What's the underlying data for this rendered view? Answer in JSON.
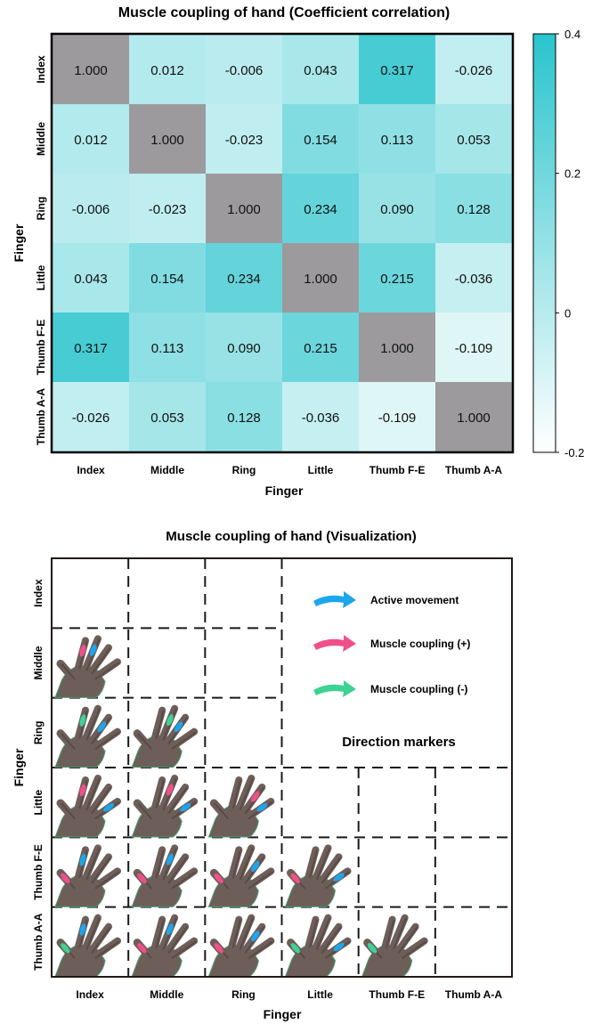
{
  "chart_data": [
    {
      "type": "heatmap",
      "title": "Muscle coupling of hand",
      "subtitle": "(Coefficient correlation)",
      "xlabel": "Finger",
      "ylabel": "Finger",
      "categories": [
        "Index",
        "Middle",
        "Ring",
        "Little",
        "Thumb F-E",
        "Thumb A-A"
      ],
      "values": [
        [
          "1.000",
          "0.012",
          "-0.006",
          "0.043",
          "0.317",
          "-0.026"
        ],
        [
          "0.012",
          "1.000",
          "-0.023",
          "0.154",
          "0.113",
          "0.053"
        ],
        [
          "-0.006",
          "-0.023",
          "1.000",
          "0.234",
          "0.090",
          "0.128"
        ],
        [
          "0.043",
          "0.154",
          "0.234",
          "1.000",
          "0.215",
          "-0.036"
        ],
        [
          "0.317",
          "0.113",
          "0.090",
          "0.215",
          "1.000",
          "-0.109"
        ],
        [
          "-0.026",
          "0.053",
          "0.128",
          "-0.036",
          "-0.109",
          "1.000"
        ]
      ],
      "diagonal_color": "#9c9a9d",
      "colorbar": {
        "min": -0.2,
        "max": 0.4,
        "ticks": [
          "0.4",
          "0.2",
          "0",
          "-0.2"
        ],
        "tick_values": [
          0.4,
          0.2,
          0,
          -0.2
        ],
        "color_low": "#ffffff",
        "color_high": "#29c4cc"
      }
    },
    {
      "type": "table",
      "title": "Muscle coupling of hand (Visualization)",
      "xlabel": "Finger",
      "ylabel": "Finger",
      "categories": [
        "Index",
        "Middle",
        "Ring",
        "Little",
        "Thumb F-E",
        "Thumb A-A"
      ],
      "cells": [
        {
          "row": 1,
          "col": 0,
          "active": "middle",
          "coupling": "index",
          "sign": "+"
        },
        {
          "row": 2,
          "col": 0,
          "active": "ring",
          "coupling": "index",
          "sign": "-"
        },
        {
          "row": 2,
          "col": 1,
          "active": "ring",
          "coupling": "middle",
          "sign": "-"
        },
        {
          "row": 3,
          "col": 0,
          "active": "little",
          "coupling": "index",
          "sign": "+"
        },
        {
          "row": 3,
          "col": 1,
          "active": "little",
          "coupling": "middle",
          "sign": "+"
        },
        {
          "row": 3,
          "col": 2,
          "active": "little",
          "coupling": "ring",
          "sign": "+"
        },
        {
          "row": 4,
          "col": 0,
          "active": "index",
          "coupling": "thumb",
          "sign": "+"
        },
        {
          "row": 4,
          "col": 1,
          "active": "middle",
          "coupling": "thumb",
          "sign": "+"
        },
        {
          "row": 4,
          "col": 2,
          "active": "ring",
          "coupling": "thumb",
          "sign": "+"
        },
        {
          "row": 4,
          "col": 3,
          "active": "little",
          "coupling": "thumb",
          "sign": "+"
        },
        {
          "row": 5,
          "col": 0,
          "active": "index",
          "coupling": "thumb",
          "sign": "-"
        },
        {
          "row": 5,
          "col": 1,
          "active": "middle",
          "coupling": "thumb",
          "sign": "+"
        },
        {
          "row": 5,
          "col": 2,
          "active": "ring",
          "coupling": "thumb",
          "sign": "+"
        },
        {
          "row": 5,
          "col": 3,
          "active": "little",
          "coupling": "thumb",
          "sign": "-"
        },
        {
          "row": 5,
          "col": 4,
          "active": "thumb",
          "coupling": "thumb",
          "sign": "-"
        }
      ],
      "legend": {
        "items": [
          {
            "label": "Active movement",
            "color": "#1ca6ec",
            "icon": "blue-arrow-icon"
          },
          {
            "label": "Muscle coupling (+)",
            "color": "#f0508a",
            "icon": "pink-arrow-icon"
          },
          {
            "label": "Muscle coupling (-)",
            "color": "#3ed294",
            "icon": "green-arrow-icon"
          }
        ],
        "caption": "Direction markers"
      },
      "colors": {
        "hand": "#6e5e59",
        "hand_shadow": "#4b3f3c",
        "edge_glow": "#4aa070"
      }
    }
  ]
}
